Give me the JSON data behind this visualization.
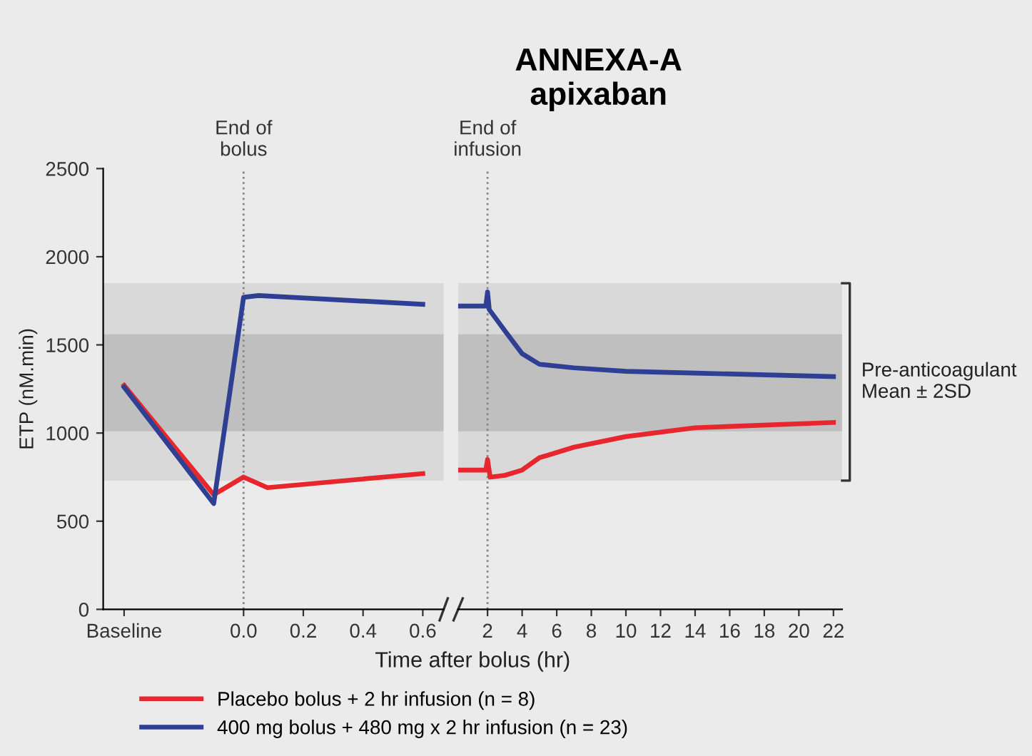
{
  "chart_data": [
    {
      "type": "line",
      "ylabel": "ETP (nM.min)",
      "xlim": [
        -0.47,
        0.67
      ],
      "ylim": [
        0,
        2500
      ],
      "xticks": [
        {
          "value": -0.4,
          "label": "Baseline"
        },
        {
          "value": 0,
          "label": "0.0"
        },
        0.2,
        0.4,
        0.6
      ],
      "yticks": [
        0,
        500,
        1000,
        1500,
        2000,
        2500
      ],
      "series": [
        {
          "name": "Placebo bolus + 2 hr infusion (n = 8)",
          "color": "#e8262d",
          "x": [
            -0.4,
            -0.1,
            0.0,
            0.08,
            0.6
          ],
          "values": [
            1270,
            650,
            750,
            690,
            770
          ]
        },
        {
          "name": "400 mg bolus + 480 mg x 2 hr infusion (n = 23)",
          "color": "#2e3f94",
          "x": [
            -0.4,
            -0.1,
            0.0,
            0.05,
            0.6
          ],
          "values": [
            1260,
            600,
            1770,
            1780,
            1730
          ]
        }
      ],
      "bands": [
        {
          "axis": "y",
          "from": 730,
          "to": 1850,
          "color": "#d9d9d9"
        },
        {
          "axis": "y",
          "from": 1010,
          "to": 1560,
          "color": "#bfbfbf"
        }
      ],
      "ref_lines": [
        {
          "axis": "x",
          "value": 0,
          "label": "End of\nbolus",
          "line_style": "dotted"
        }
      ],
      "legend": "bottom",
      "grid": false,
      "marker": "none",
      "line_style": "solid"
    },
    {
      "type": "line",
      "title": "ANNEXA-A\napixaban",
      "xlabel": "Time after bolus (hr)",
      "xlim": [
        0.3,
        22.5
      ],
      "ylim": [
        0,
        2500
      ],
      "xticks": [
        2,
        4,
        6,
        8,
        10,
        12,
        14,
        16,
        18,
        20,
        22
      ],
      "tick_labels": "x",
      "series": [
        {
          "color": "#e8262d",
          "x": [
            0.4,
            1.9,
            2.0,
            2.15,
            3,
            4,
            5,
            7,
            10,
            14,
            22
          ],
          "values": [
            790,
            790,
            850,
            750,
            760,
            790,
            860,
            920,
            980,
            1030,
            1060
          ]
        },
        {
          "color": "#2e3f94",
          "x": [
            0.4,
            1.9,
            2.0,
            2.1,
            3,
            4,
            5,
            7,
            10,
            14,
            22
          ],
          "values": [
            1720,
            1720,
            1800,
            1700,
            1580,
            1450,
            1390,
            1370,
            1350,
            1340,
            1320
          ]
        }
      ],
      "bands": [
        {
          "axis": "y",
          "from": 730,
          "to": 1850,
          "label": "Pre-anticoagulant\nMean ± 2SD",
          "color": "#d9d9d9"
        },
        {
          "axis": "y",
          "from": 1010,
          "to": 1560,
          "color": "#bfbfbf"
        }
      ],
      "ref_lines": [
        {
          "axis": "x",
          "value": 2,
          "label": "End of\ninfusion",
          "line_style": "dotted"
        }
      ],
      "grid": false,
      "marker": "none",
      "line_style": "solid"
    }
  ]
}
